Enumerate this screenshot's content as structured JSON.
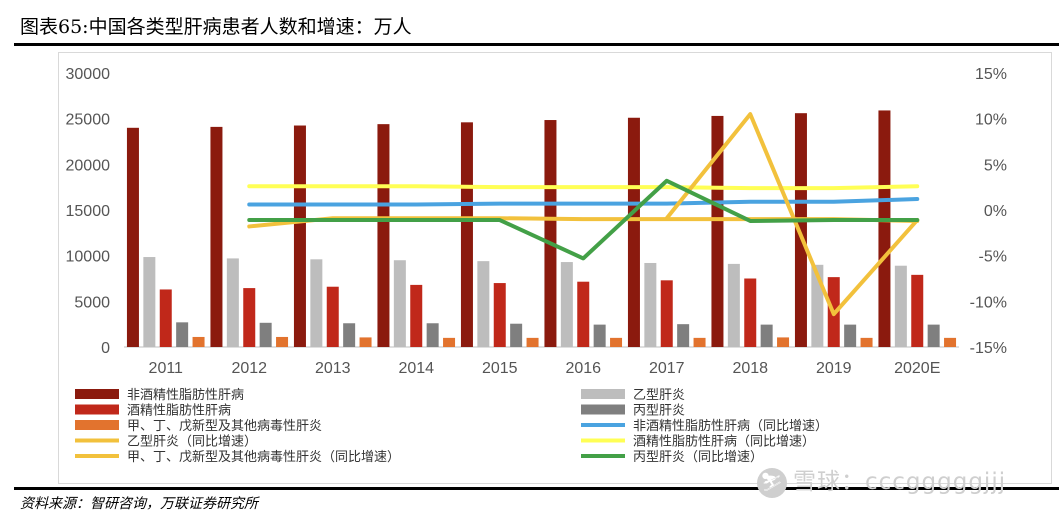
{
  "header": {
    "title": "图表65:中国各类型肝病患者人数和增速：万人"
  },
  "footer": {
    "source": "资料来源：智研咨询，万联证券研究所"
  },
  "watermark": {
    "text": "雪球：cccgggggjjj",
    "logo_glyph": "⛷"
  },
  "chart_data": {
    "type": "bar",
    "categories": [
      "2011",
      "2012",
      "2013",
      "2014",
      "2015",
      "2016",
      "2017",
      "2018",
      "2019",
      "2020E"
    ],
    "y_left": {
      "ylim": [
        0,
        30000
      ],
      "ticks": [
        "0",
        "5000",
        "10000",
        "15000",
        "20000",
        "25000",
        "30000"
      ]
    },
    "y_right": {
      "ylim": [
        -15,
        15
      ],
      "ticks": [
        "-15%",
        "-10%",
        "-5%",
        "0%",
        "5%",
        "10%",
        "15%"
      ]
    },
    "grid": false,
    "legend_position": "bottom",
    "bar_series": [
      {
        "name": "非酒精性脂肪性肝病",
        "color": "#8b1a0e",
        "values": [
          24000,
          24100,
          24250,
          24400,
          24600,
          24850,
          25100,
          25300,
          25600,
          25900
        ]
      },
      {
        "name": "乙型肝炎",
        "color": "#bdbdbd",
        "values": [
          9850,
          9700,
          9600,
          9500,
          9400,
          9300,
          9200,
          9100,
          9000,
          8900
        ]
      },
      {
        "name": "酒精性脂肪性肝病",
        "color": "#c0281a",
        "values": [
          6300,
          6450,
          6600,
          6800,
          7000,
          7150,
          7300,
          7500,
          7650,
          7900
        ]
      },
      {
        "name": "丙型肝炎",
        "color": "#7f7f7f",
        "values": [
          2700,
          2650,
          2600,
          2600,
          2550,
          2450,
          2500,
          2450,
          2450,
          2450
        ]
      },
      {
        "name": "甲、丁、戊新型及其他病毒性肝炎",
        "color": "#e2732e",
        "values": [
          1100,
          1100,
          1050,
          1000,
          1000,
          1000,
          1000,
          1050,
          1000,
          1000
        ]
      }
    ],
    "line_series": [
      {
        "name": "非酒精性脂肪性肝病（同比增速）",
        "color": "#4aa3e0",
        "values": [
          null,
          0.6,
          0.6,
          0.6,
          0.7,
          0.7,
          0.7,
          0.9,
          0.9,
          1.2
        ]
      },
      {
        "name": "酒精性脂肪性肝病（同比增速）",
        "color": "#ffff55",
        "values": [
          null,
          2.6,
          2.6,
          2.6,
          2.5,
          2.5,
          2.5,
          2.4,
          2.4,
          2.6
        ]
      },
      {
        "name": "乙型肝炎（同比增速）",
        "color": "#f2c13c",
        "values": [
          null,
          -1.8,
          -0.9,
          -0.9,
          -0.9,
          -1.0,
          -1.0,
          -1.0,
          -1.0,
          -1.2
        ]
      },
      {
        "name": "甲、丁、戊新型及其他病毒性肝炎（同比增速）",
        "color": "#f2c13c",
        "values": [
          null,
          null,
          null,
          null,
          null,
          null,
          -0.9,
          10.5,
          -11.4,
          -1.1
        ]
      },
      {
        "name": "丙型肝炎（同比增速）",
        "color": "#43a047",
        "values": [
          null,
          -1.1,
          -1.1,
          -1.1,
          -1.1,
          -5.3,
          3.2,
          -1.2,
          -1.1,
          -1.1
        ]
      }
    ],
    "legend": [
      {
        "label": "非酒精性脂肪性肝病",
        "color": "#8b1a0e",
        "kind": "bar",
        "col": 0,
        "row": 0
      },
      {
        "label": "乙型肝炎",
        "color": "#bdbdbd",
        "kind": "bar",
        "col": 1,
        "row": 0
      },
      {
        "label": "酒精性脂肪性肝病",
        "color": "#c0281a",
        "kind": "bar",
        "col": 0,
        "row": 1
      },
      {
        "label": "丙型肝炎",
        "color": "#7f7f7f",
        "kind": "bar",
        "col": 1,
        "row": 1
      },
      {
        "label": "甲、丁、戊新型及其他病毒性肝炎",
        "color": "#e2732e",
        "kind": "bar",
        "col": 0,
        "row": 2
      },
      {
        "label": "非酒精性脂肪性肝病（同比增速）",
        "color": "#4aa3e0",
        "kind": "line",
        "col": 1,
        "row": 2
      },
      {
        "label": "乙型肝炎（同比增速）",
        "color": "#f2c13c",
        "kind": "line",
        "col": 0,
        "row": 3
      },
      {
        "label": "酒精性脂肪性肝病（同比增速）",
        "color": "#ffff55",
        "kind": "line",
        "col": 1,
        "row": 3
      },
      {
        "label": "甲、丁、戊新型及其他病毒性肝炎（同比增速）",
        "color": "#f2c13c",
        "kind": "line",
        "col": 0,
        "row": 4
      },
      {
        "label": "丙型肝炎（同比增速）",
        "color": "#43a047",
        "kind": "line",
        "col": 1,
        "row": 4
      }
    ]
  }
}
